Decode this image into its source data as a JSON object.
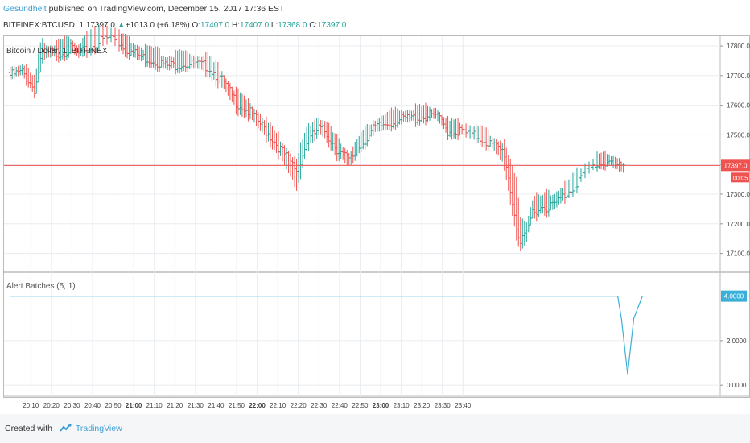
{
  "header": {
    "author": "Gesundheit",
    "published": " published on TradingView.com, December 15, 2017 17:36 EST",
    "symbol": "BITFINEX:BTCUSD, 1",
    "last": "17397.0",
    "change": "+1013.0 (+6.18%)",
    "o_label": "O:",
    "o_val": "17407.0",
    "h_label": "H:",
    "h_val": "17407.0",
    "l_label": "L:",
    "l_val": "17368.0",
    "c_label": "C:",
    "c_val": "17397.0"
  },
  "footer": {
    "created_with": "Created with",
    "brand": "TradingView"
  },
  "colors": {
    "up": "#26a69a",
    "down": "#ef5350",
    "price_line": "#ef5350",
    "indicator": "#3ab0d8",
    "grid": "#e8ecf0"
  },
  "chart_data": [
    {
      "type": "candlestick",
      "title": "Bitcoin / Dollar, 1, BITFINEX",
      "y_ticks": [
        "17100.0",
        "17200.0",
        "17300.0",
        "17400.0",
        "17500.0",
        "17600.0",
        "17700.0",
        "17800.0"
      ],
      "y_tick_values": [
        17100,
        17200,
        17300,
        17400,
        17500,
        17600,
        17700,
        17800
      ],
      "ylim": [
        17050,
        17830
      ],
      "current_price": 17397,
      "current_price_label": "17397.0",
      "countdown_label": "00:05",
      "close_path": [
        [
          20.0,
          17710
        ],
        [
          20.1,
          17720
        ],
        [
          20.17,
          17680
        ],
        [
          20.2,
          17660
        ],
        [
          20.25,
          17770
        ],
        [
          20.3,
          17785
        ],
        [
          20.4,
          17785
        ],
        [
          20.5,
          17800
        ],
        [
          20.55,
          17780
        ],
        [
          20.6,
          17790
        ],
        [
          20.75,
          17830
        ],
        [
          20.83,
          17840
        ],
        [
          20.95,
          17795
        ],
        [
          21.07,
          17770
        ],
        [
          21.17,
          17760
        ],
        [
          21.27,
          17740
        ],
        [
          21.4,
          17750
        ],
        [
          21.5,
          17745
        ],
        [
          21.6,
          17740
        ],
        [
          21.72,
          17690
        ],
        [
          21.83,
          17620
        ],
        [
          21.95,
          17580
        ],
        [
          22.08,
          17520
        ],
        [
          22.17,
          17470
        ],
        [
          22.32,
          17390
        ],
        [
          22.4,
          17480
        ],
        [
          22.5,
          17530
        ],
        [
          22.55,
          17520
        ],
        [
          22.65,
          17460
        ],
        [
          22.75,
          17420
        ],
        [
          22.83,
          17470
        ],
        [
          22.95,
          17530
        ],
        [
          23.07,
          17550
        ],
        [
          23.17,
          17560
        ],
        [
          23.35,
          17570
        ],
        [
          23.45,
          17575
        ],
        [
          23.55,
          17520
        ],
        [
          23.65,
          17520
        ],
        [
          23.8,
          17500
        ],
        [
          23.9,
          17475
        ],
        [
          24.0,
          17450
        ],
        [
          24.1,
          17200
        ],
        [
          24.13,
          17140
        ],
        [
          24.18,
          17170
        ],
        [
          24.23,
          17250
        ],
        [
          24.3,
          17265
        ],
        [
          24.4,
          17270
        ],
        [
          24.55,
          17330
        ],
        [
          24.65,
          17380
        ],
        [
          24.75,
          17410
        ],
        [
          24.85,
          17420
        ],
        [
          24.93,
          17400
        ],
        [
          24.97,
          17397
        ]
      ],
      "high_path": [
        [
          20.0,
          17725
        ],
        [
          20.1,
          17740
        ],
        [
          20.17,
          17700
        ],
        [
          20.2,
          17680
        ],
        [
          20.25,
          17830
        ],
        [
          20.3,
          17800
        ],
        [
          20.4,
          17805
        ],
        [
          20.5,
          17820
        ],
        [
          20.55,
          17800
        ],
        [
          20.6,
          17830
        ],
        [
          20.75,
          17870
        ],
        [
          20.83,
          17860
        ],
        [
          20.95,
          17815
        ],
        [
          21.07,
          17790
        ],
        [
          21.17,
          17780
        ],
        [
          21.27,
          17760
        ],
        [
          21.4,
          17770
        ],
        [
          21.5,
          17765
        ],
        [
          21.6,
          17760
        ],
        [
          21.72,
          17710
        ],
        [
          21.83,
          17640
        ],
        [
          21.95,
          17600
        ],
        [
          22.08,
          17540
        ],
        [
          22.17,
          17490
        ],
        [
          22.32,
          17410
        ],
        [
          22.4,
          17520
        ],
        [
          22.5,
          17560
        ],
        [
          22.55,
          17540
        ],
        [
          22.65,
          17480
        ],
        [
          22.75,
          17440
        ],
        [
          22.83,
          17490
        ],
        [
          22.95,
          17550
        ],
        [
          23.07,
          17570
        ],
        [
          23.17,
          17580
        ],
        [
          23.35,
          17590
        ],
        [
          23.45,
          17590
        ],
        [
          23.55,
          17540
        ],
        [
          23.65,
          17540
        ],
        [
          23.8,
          17520
        ],
        [
          23.9,
          17495
        ],
        [
          24.0,
          17470
        ],
        [
          24.1,
          17340
        ],
        [
          24.13,
          17220
        ],
        [
          24.18,
          17200
        ],
        [
          24.23,
          17280
        ],
        [
          24.3,
          17290
        ],
        [
          24.4,
          17300
        ],
        [
          24.55,
          17350
        ],
        [
          24.65,
          17400
        ],
        [
          24.75,
          17430
        ],
        [
          24.85,
          17430
        ],
        [
          24.93,
          17420
        ],
        [
          24.97,
          17407
        ]
      ],
      "low_path": [
        [
          20.0,
          17690
        ],
        [
          20.1,
          17700
        ],
        [
          20.17,
          17660
        ],
        [
          20.2,
          17640
        ],
        [
          20.25,
          17740
        ],
        [
          20.3,
          17760
        ],
        [
          20.4,
          17765
        ],
        [
          20.5,
          17780
        ],
        [
          20.55,
          17760
        ],
        [
          20.6,
          17770
        ],
        [
          20.75,
          17800
        ],
        [
          20.83,
          17815
        ],
        [
          20.95,
          17775
        ],
        [
          21.07,
          17750
        ],
        [
          21.17,
          17740
        ],
        [
          21.27,
          17720
        ],
        [
          21.4,
          17730
        ],
        [
          21.5,
          17725
        ],
        [
          21.6,
          17715
        ],
        [
          21.72,
          17660
        ],
        [
          21.83,
          17590
        ],
        [
          21.95,
          17555
        ],
        [
          22.08,
          17490
        ],
        [
          22.17,
          17440
        ],
        [
          22.32,
          17320
        ],
        [
          22.4,
          17450
        ],
        [
          22.5,
          17500
        ],
        [
          22.55,
          17495
        ],
        [
          22.65,
          17430
        ],
        [
          22.75,
          17390
        ],
        [
          22.83,
          17450
        ],
        [
          22.95,
          17505
        ],
        [
          23.07,
          17530
        ],
        [
          23.17,
          17540
        ],
        [
          23.35,
          17550
        ],
        [
          23.45,
          17555
        ],
        [
          23.55,
          17500
        ],
        [
          23.65,
          17500
        ],
        [
          23.8,
          17480
        ],
        [
          23.9,
          17455
        ],
        [
          24.0,
          17400
        ],
        [
          24.1,
          17160
        ],
        [
          24.13,
          17110
        ],
        [
          24.18,
          17140
        ],
        [
          24.23,
          17225
        ],
        [
          24.3,
          17240
        ],
        [
          24.4,
          17245
        ],
        [
          24.55,
          17305
        ],
        [
          24.65,
          17355
        ],
        [
          24.75,
          17390
        ],
        [
          24.85,
          17400
        ],
        [
          24.93,
          17380
        ],
        [
          24.97,
          17368
        ]
      ]
    },
    {
      "type": "line",
      "title": "Alert Batches (5, 1)",
      "y_ticks": [
        "0.0000",
        "2.0000"
      ],
      "y_tick_values": [
        0,
        2
      ],
      "ylim": [
        -0.5,
        5.0
      ],
      "last_value_label": "4.0000",
      "series": [
        {
          "values": [
            [
              20.0,
              4.0
            ],
            [
              24.92,
              4.0
            ],
            [
              24.95,
              3.0
            ],
            [
              25.0,
              0.5
            ],
            [
              25.05,
              3.0
            ],
            [
              25.12,
              4.0
            ]
          ]
        }
      ]
    }
  ],
  "x_axis": {
    "xlim": [
      19.95,
      25.75
    ],
    "ticks": [
      {
        "v": 20.1667,
        "label": "20:10",
        "bold": false
      },
      {
        "v": 20.3333,
        "label": "20:20",
        "bold": false
      },
      {
        "v": 20.5,
        "label": "20:30",
        "bold": false
      },
      {
        "v": 20.6667,
        "label": "20:40",
        "bold": false
      },
      {
        "v": 20.8333,
        "label": "20:50",
        "bold": false
      },
      {
        "v": 21.0,
        "label": "21:00",
        "bold": true
      },
      {
        "v": 21.1667,
        "label": "21:10",
        "bold": false
      },
      {
        "v": 21.3333,
        "label": "21:20",
        "bold": false
      },
      {
        "v": 21.5,
        "label": "21:30",
        "bold": false
      },
      {
        "v": 21.6667,
        "label": "21:40",
        "bold": false
      },
      {
        "v": 21.8333,
        "label": "21:50",
        "bold": false
      },
      {
        "v": 22.0,
        "label": "22:00",
        "bold": true
      },
      {
        "v": 22.1667,
        "label": "22:10",
        "bold": false
      },
      {
        "v": 22.3333,
        "label": "22:20",
        "bold": false
      },
      {
        "v": 22.5,
        "label": "22:30",
        "bold": false
      },
      {
        "v": 22.6667,
        "label": "22:40",
        "bold": false
      },
      {
        "v": 22.8333,
        "label": "22:50",
        "bold": false
      },
      {
        "v": 23.0,
        "label": "23:00",
        "bold": true
      },
      {
        "v": 23.1667,
        "label": "23:10",
        "bold": false
      },
      {
        "v": 23.3333,
        "label": "23:20",
        "bold": false
      },
      {
        "v": 23.5,
        "label": "23:30",
        "bold": false
      },
      {
        "v": 23.6667,
        "label": "23:40",
        "bold": false
      }
    ]
  }
}
